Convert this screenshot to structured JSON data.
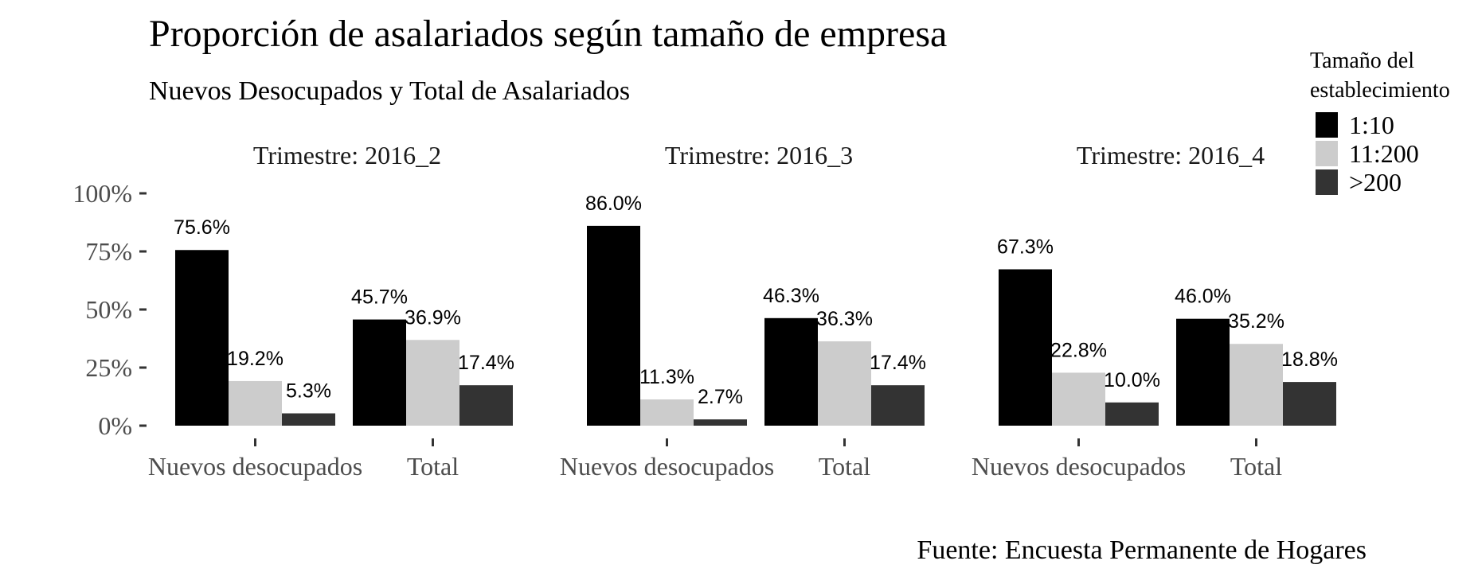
{
  "chart_data": {
    "type": "bar",
    "title": "Proporción de asalariados según tamaño de empresa",
    "subtitle": "Nuevos Desocupados y Total de Asalariados",
    "caption": "Fuente: Encuesta Permanente de Hogares",
    "xlabel": "",
    "ylabel": "",
    "ylim": [
      0,
      1
    ],
    "yticks": [
      {
        "value": 0,
        "label": "0%"
      },
      {
        "value": 0.25,
        "label": "25%"
      },
      {
        "value": 0.5,
        "label": "50%"
      },
      {
        "value": 0.75,
        "label": "75%"
      },
      {
        "value": 1,
        "label": "100%"
      }
    ],
    "grid": false,
    "categories": [
      "Nuevos desocupados",
      "Total"
    ],
    "legend": {
      "title": "Tamaño del establecimiento",
      "title_lines": [
        "Tamaño del",
        "establecimiento"
      ],
      "position": "top-right",
      "entries": [
        {
          "label": "1:10",
          "color": "#000000"
        },
        {
          "label": "11:200",
          "color": "#cccccc"
        },
        {
          "label": ">200",
          "color": "#333333"
        }
      ]
    },
    "panels": [
      {
        "label": "Trimestre: 2016_2",
        "groups": [
          {
            "category": "Nuevos desocupados",
            "values": [
              0.756,
              0.192,
              0.053
            ],
            "labels": [
              "75.6%",
              "19.2%",
              "5.3%"
            ]
          },
          {
            "category": "Total",
            "values": [
              0.457,
              0.369,
              0.174
            ],
            "labels": [
              "45.7%",
              "36.9%",
              "17.4%"
            ]
          }
        ]
      },
      {
        "label": "Trimestre: 2016_3",
        "groups": [
          {
            "category": "Nuevos desocupados",
            "values": [
              0.86,
              0.113,
              0.027
            ],
            "labels": [
              "86.0%",
              "11.3%",
              "2.7%"
            ]
          },
          {
            "category": "Total",
            "values": [
              0.463,
              0.363,
              0.174
            ],
            "labels": [
              "46.3%",
              "36.3%",
              "17.4%"
            ]
          }
        ]
      },
      {
        "label": "Trimestre: 2016_4",
        "groups": [
          {
            "category": "Nuevos desocupados",
            "values": [
              0.673,
              0.228,
              0.1
            ],
            "labels": [
              "67.3%",
              "22.8%",
              "10.0%"
            ]
          },
          {
            "category": "Total",
            "values": [
              0.46,
              0.352,
              0.188
            ],
            "labels": [
              "46.0%",
              "35.2%",
              "18.8%"
            ]
          }
        ]
      }
    ]
  }
}
